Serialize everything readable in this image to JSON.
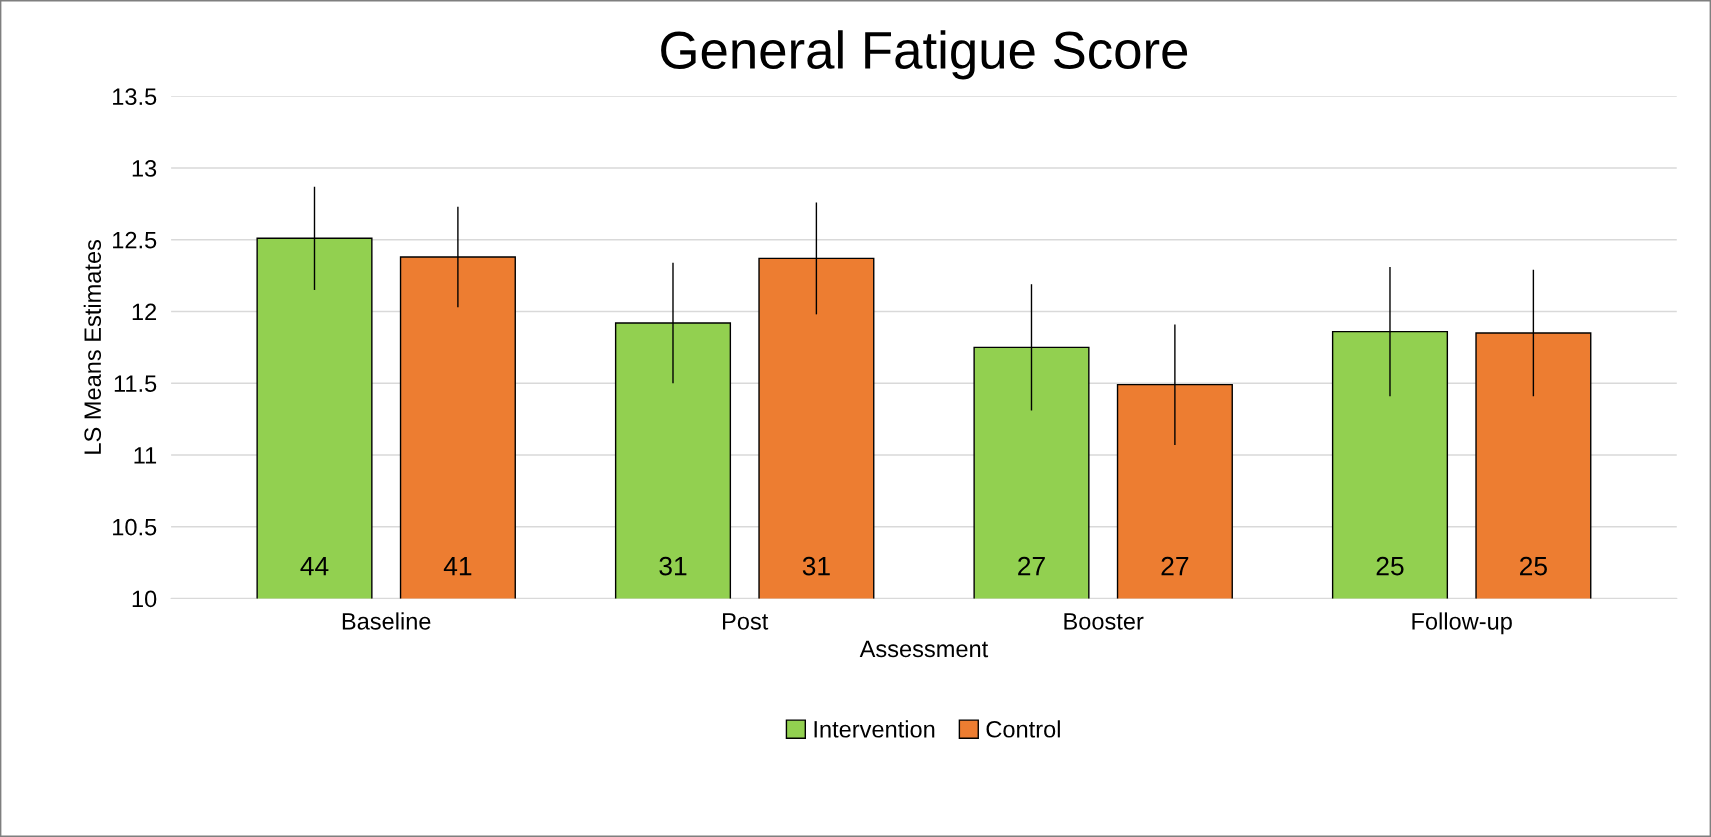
{
  "chart_data": {
    "type": "bar",
    "title": "General Fatigue Score",
    "xlabel": "Assessment",
    "ylabel": "LS Means Estimates",
    "categories": [
      "Baseline",
      "Post",
      "Booster",
      "Follow-up"
    ],
    "series": [
      {
        "name": "Intervention",
        "color": "#92d050",
        "values": [
          12.51,
          11.92,
          11.75,
          11.86
        ],
        "errors": [
          0.36,
          0.42,
          0.44,
          0.45
        ]
      },
      {
        "name": "Control",
        "color": "#ed7d31",
        "values": [
          12.38,
          12.37,
          11.49,
          11.85
        ],
        "errors": [
          0.35,
          0.39,
          0.42,
          0.44
        ]
      }
    ],
    "annotations": [
      "44",
      "31",
      "27",
      "25",
      "41",
      "31",
      "27",
      "25"
    ],
    "ylim": [
      10,
      13.5
    ],
    "yticks": [
      10,
      10.5,
      11,
      11.5,
      12,
      12.5,
      13,
      13.5
    ],
    "grid": "y",
    "legend": "bottom"
  }
}
